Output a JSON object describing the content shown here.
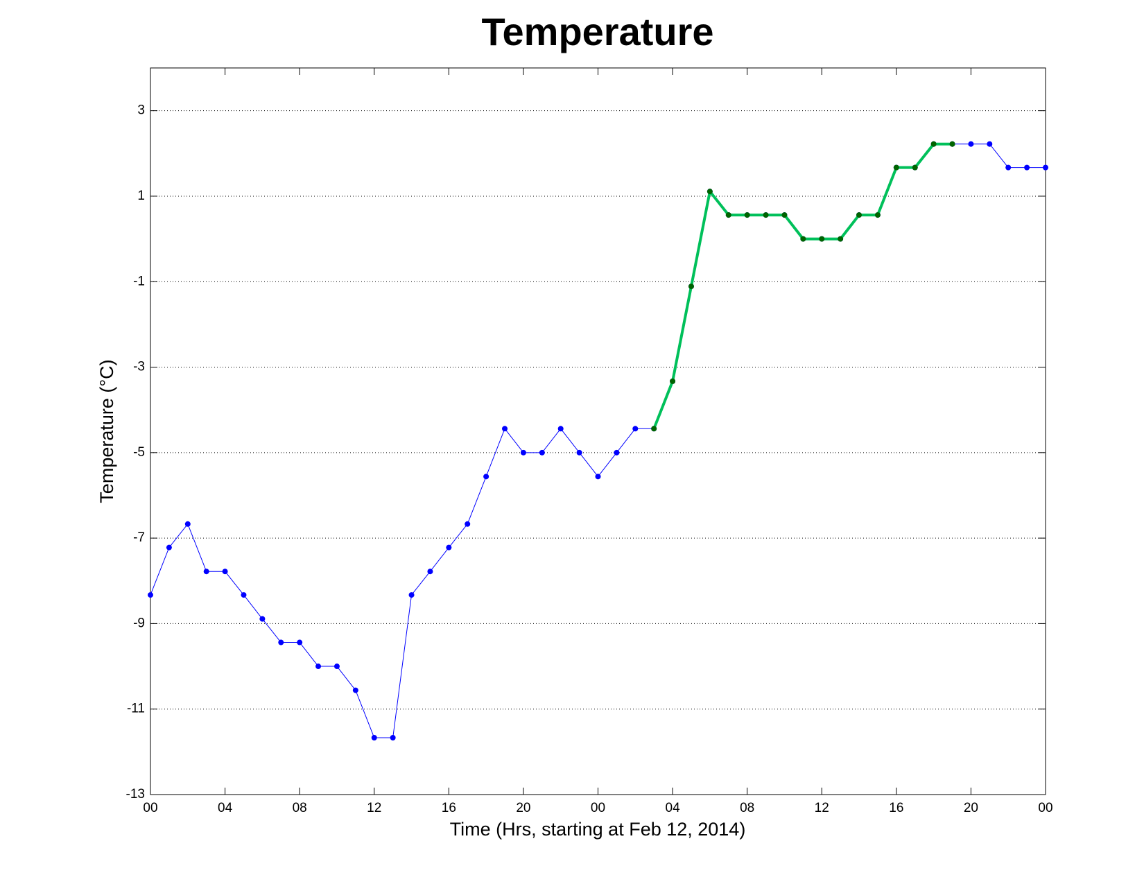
{
  "chart_data": {
    "type": "line",
    "title": "Temperature",
    "x_label": "Time (Hrs, starting at Feb 12, 2014)",
    "y_label": "Temperature (°C)",
    "x": [
      0,
      1,
      2,
      3,
      4,
      5,
      6,
      7,
      8,
      9,
      10,
      11,
      12,
      13,
      14,
      15,
      16,
      17,
      18,
      19,
      20,
      21,
      22,
      23,
      24,
      25,
      26,
      27,
      28,
      29,
      30,
      31,
      32,
      33,
      34,
      35,
      36,
      37,
      38,
      39,
      40,
      41,
      42,
      43,
      44,
      45,
      46,
      47,
      48
    ],
    "series": [
      {
        "color": "#0000ff",
        "marker_color": "#0000ff",
        "line_width": 1,
        "values": [
          -8.33,
          -7.22,
          -6.67,
          -7.78,
          -7.78,
          -8.33,
          -8.89,
          -9.44,
          -9.44,
          -10.0,
          -10.0,
          -10.56,
          -11.67,
          -11.67,
          -8.33,
          -7.78,
          -7.22,
          -6.67,
          -5.56,
          -4.44,
          -5.0,
          -5.0,
          -4.44,
          -5.0,
          -5.56,
          -5.0,
          -4.44,
          -4.44,
          -3.33,
          -1.11,
          1.11,
          0.56,
          0.56,
          0.56,
          0.56,
          0.0,
          0.0,
          0.0,
          0.56,
          0.56,
          1.67,
          1.67,
          2.22,
          2.22,
          2.22,
          2.22,
          1.67,
          1.67,
          1.67
        ]
      },
      {
        "color": "#00c05a",
        "marker_color": "#006400",
        "line_width": 4,
        "values": [
          null,
          null,
          null,
          null,
          null,
          null,
          null,
          null,
          null,
          null,
          null,
          null,
          null,
          null,
          null,
          null,
          null,
          null,
          null,
          null,
          null,
          null,
          null,
          null,
          null,
          null,
          null,
          -4.44,
          -3.33,
          -1.11,
          1.11,
          0.56,
          0.56,
          0.56,
          0.56,
          0.0,
          0.0,
          0.0,
          0.56,
          0.56,
          1.67,
          1.67,
          2.22,
          2.22,
          null,
          null,
          null,
          null,
          null
        ]
      }
    ],
    "xlim": [
      0,
      48
    ],
    "xticks": [
      {
        "value": 0,
        "label": "00"
      },
      {
        "value": 4,
        "label": "04"
      },
      {
        "value": 8,
        "label": "08"
      },
      {
        "value": 12,
        "label": "12"
      },
      {
        "value": 16,
        "label": "16"
      },
      {
        "value": 20,
        "label": "20"
      },
      {
        "value": 24,
        "label": "00"
      },
      {
        "value": 28,
        "label": "04"
      },
      {
        "value": 32,
        "label": "08"
      },
      {
        "value": 36,
        "label": "12"
      },
      {
        "value": 40,
        "label": "16"
      },
      {
        "value": 44,
        "label": "20"
      },
      {
        "value": 48,
        "label": "00"
      }
    ],
    "ylim": [
      -13,
      4
    ],
    "yticks": [
      -13,
      -11,
      -9,
      -7,
      -5,
      -3,
      -1,
      1,
      3
    ],
    "grid": "y"
  }
}
